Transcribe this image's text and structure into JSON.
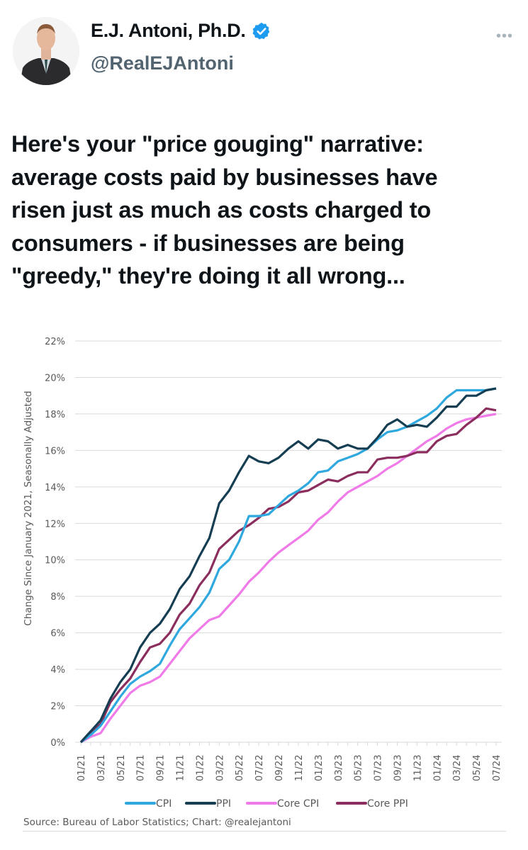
{
  "author": {
    "name": "E.J. Antoni, Ph.D.",
    "handle": "@RealEJAntoni",
    "verified": true,
    "verified_color": "#1d9bf0"
  },
  "menu": {
    "icon": "more-horizontal-icon",
    "label": "•••"
  },
  "tweet": {
    "lines": [
      "Here's your \"price gouging\" narrative:",
      "average costs paid by businesses have",
      "risen just as much as costs charged to",
      "consumers - if businesses are being",
      "\"greedy,\" they're doing it all wrong..."
    ]
  },
  "chart_data": {
    "type": "line",
    "title": "",
    "ylabel": "Change Since January 2021, Seasonally Adjusted",
    "xlabel": "",
    "ylim": [
      0,
      22
    ],
    "yticks": [
      "0%",
      "2%",
      "4%",
      "6%",
      "8%",
      "10%",
      "12%",
      "14%",
      "16%",
      "18%",
      "20%",
      "22%"
    ],
    "xtick_labels": [
      "01/21",
      "03/21",
      "05/21",
      "07/21",
      "09/21",
      "11/21",
      "01/22",
      "03/22",
      "05/22",
      "07/22",
      "09/22",
      "11/22",
      "01/23",
      "03/23",
      "05/23",
      "07/23",
      "09/23",
      "11/23",
      "01/24",
      "03/24",
      "05/24",
      "07/24"
    ],
    "grid": true,
    "legend": "bottom",
    "source": "Source: Bureau of Labor Statistics; Chart: @realejantoni",
    "series": [
      {
        "name": "CPI",
        "color": "#2ea8df",
        "values": [
          0,
          0.4,
          0.9,
          1.7,
          2.5,
          3.2,
          3.6,
          3.9,
          4.3,
          5.3,
          6.2,
          6.8,
          7.4,
          8.2,
          9.5,
          10.0,
          11.0,
          12.4,
          12.4,
          12.5,
          13.0,
          13.5,
          13.8,
          14.2,
          14.8,
          14.9,
          15.4,
          15.6,
          15.8,
          16.1,
          16.6,
          17.0,
          17.1,
          17.3,
          17.6,
          17.9,
          18.3,
          18.9,
          19.3,
          19.3,
          19.3,
          19.3,
          19.4
        ]
      },
      {
        "name": "PPI",
        "color": "#163e52",
        "values": [
          0,
          0.6,
          1.2,
          2.4,
          3.3,
          4.0,
          5.2,
          6.0,
          6.5,
          7.3,
          8.4,
          9.1,
          10.2,
          11.2,
          13.1,
          13.8,
          14.8,
          15.7,
          15.4,
          15.3,
          15.6,
          16.1,
          16.5,
          16.1,
          16.6,
          16.5,
          16.1,
          16.3,
          16.1,
          16.1,
          16.7,
          17.4,
          17.7,
          17.3,
          17.4,
          17.3,
          17.8,
          18.4,
          18.4,
          19.0,
          19.0,
          19.3,
          19.4
        ]
      },
      {
        "name": "Core CPI",
        "color": "#ef7ae8",
        "values": [
          0,
          0.3,
          0.5,
          1.3,
          2.0,
          2.7,
          3.1,
          3.3,
          3.6,
          4.3,
          5.0,
          5.7,
          6.2,
          6.7,
          6.9,
          7.5,
          8.1,
          8.8,
          9.3,
          9.9,
          10.4,
          10.8,
          11.2,
          11.6,
          12.2,
          12.6,
          13.2,
          13.7,
          14.0,
          14.3,
          14.6,
          15.0,
          15.3,
          15.7,
          16.1,
          16.5,
          16.8,
          17.2,
          17.5,
          17.7,
          17.8,
          17.9,
          18.0
        ]
      },
      {
        "name": "Core PPI",
        "color": "#8b2e5e",
        "values": [
          0,
          0.5,
          1.0,
          2.2,
          2.9,
          3.5,
          4.4,
          5.2,
          5.4,
          6.0,
          7.0,
          7.6,
          8.6,
          9.3,
          10.6,
          11.1,
          11.6,
          11.9,
          12.3,
          12.8,
          12.9,
          13.2,
          13.7,
          13.8,
          14.1,
          14.4,
          14.3,
          14.6,
          14.8,
          14.8,
          15.5,
          15.6,
          15.6,
          15.7,
          15.9,
          15.9,
          16.5,
          16.8,
          16.9,
          17.4,
          17.8,
          18.3,
          18.2
        ]
      }
    ]
  }
}
